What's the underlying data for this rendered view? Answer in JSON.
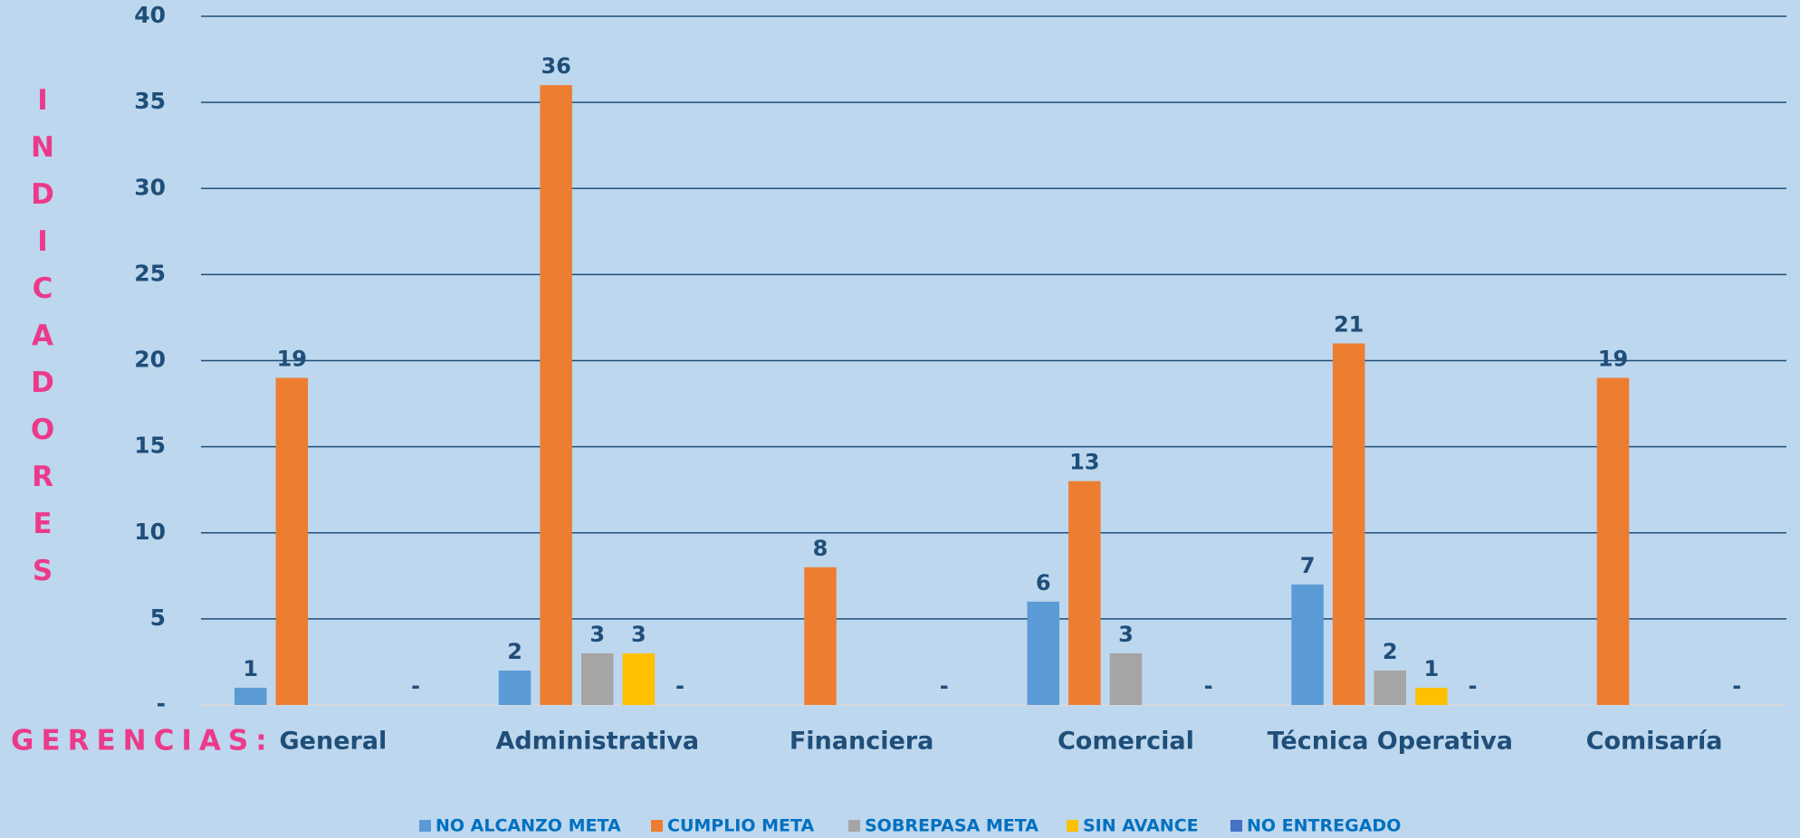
{
  "chart_data": {
    "type": "bar",
    "x_label": "GERENCIAS:",
    "y_label": "INDICADORES",
    "categories": [
      "General",
      "Administrativa",
      "Financiera",
      "Comercial",
      "Técnica Operativa",
      "Comisaría"
    ],
    "series": [
      {
        "name": "NO ALCANZO META",
        "color": "#5b9bd5",
        "values": [
          1,
          2,
          null,
          6,
          7,
          null
        ]
      },
      {
        "name": "CUMPLIO META",
        "color": "#ed7d31",
        "values": [
          19,
          36,
          8,
          13,
          21,
          19
        ]
      },
      {
        "name": "SOBREPASA META",
        "color": "#a5a5a5",
        "values": [
          null,
          3,
          null,
          3,
          2,
          null
        ]
      },
      {
        "name": "SIN AVANCE",
        "color": "#ffc000",
        "values": [
          null,
          3,
          null,
          null,
          1,
          null
        ]
      },
      {
        "name": "NO ENTREGADO",
        "color": "#4472c4",
        "values": [
          0,
          0,
          0,
          0,
          0,
          0
        ],
        "value_labels": [
          "-",
          "-",
          "-",
          "-",
          "-",
          "-"
        ]
      }
    ],
    "ylim": [
      0,
      40
    ],
    "yticks": [
      {
        "value": 0,
        "label": "-"
      },
      5,
      10,
      15,
      20,
      25,
      30,
      35,
      40
    ],
    "grid": true,
    "legend": "bottom"
  }
}
